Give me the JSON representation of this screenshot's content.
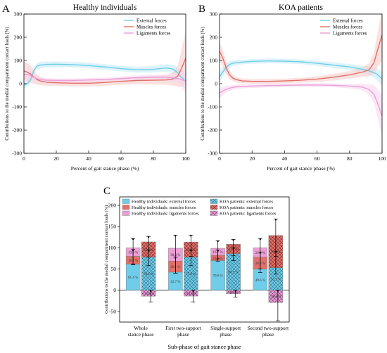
{
  "colors": {
    "external": "#6fcdea",
    "muscles": "#e0706a",
    "ligaments": "#ea9fd6",
    "external_band": "#bfe9f6",
    "muscles_band": "#f5c9c6",
    "ligaments_band": "#f8d4ee"
  },
  "chart_data": [
    {
      "type": "line",
      "panel_letter": "A",
      "title": "Healthy individuals",
      "xlabel": "Percent of gait stance phase (%)",
      "ylabel": "Contributions to the medial compartment contact loads (%)",
      "xlim": [
        0,
        100
      ],
      "ylim": [
        -300,
        300
      ],
      "xticks": [
        "0",
        "20",
        "40",
        "60",
        "80",
        "100"
      ],
      "yticks": [
        "-300",
        "-200",
        "-100",
        "0",
        "100",
        "200",
        "300"
      ],
      "legend": [
        "External forces",
        "Muscles forces",
        "Ligaments forces"
      ],
      "legend_position": "top-right",
      "series": [
        {
          "name": "External forces",
          "x": [
            0,
            2,
            4,
            6,
            8,
            10,
            14,
            20,
            30,
            40,
            50,
            60,
            70,
            80,
            88,
            92,
            95,
            97,
            100
          ],
          "y": [
            -5,
            0,
            15,
            55,
            75,
            80,
            83,
            84,
            82,
            78,
            72,
            65,
            60,
            62,
            68,
            63,
            48,
            30,
            10
          ],
          "band": [
            15,
            15,
            15,
            14,
            14,
            14,
            13,
            12,
            12,
            12,
            12,
            12,
            13,
            14,
            16,
            18,
            22,
            28,
            35
          ]
        },
        {
          "name": "Muscles forces",
          "x": [
            0,
            2,
            4,
            6,
            8,
            10,
            14,
            20,
            30,
            40,
            50,
            60,
            70,
            80,
            88,
            92,
            95,
            97,
            100
          ],
          "y": [
            55,
            50,
            42,
            30,
            18,
            12,
            6,
            4,
            2,
            2,
            5,
            10,
            14,
            15,
            16,
            20,
            32,
            60,
            110
          ],
          "band": [
            40,
            40,
            38,
            30,
            22,
            18,
            15,
            14,
            14,
            14,
            14,
            15,
            16,
            18,
            20,
            28,
            45,
            75,
            115
          ]
        },
        {
          "name": "Ligaments forces",
          "x": [
            0,
            2,
            4,
            6,
            8,
            10,
            14,
            20,
            30,
            40,
            50,
            60,
            70,
            80,
            88,
            92,
            95,
            97,
            100
          ],
          "y": [
            40,
            40,
            35,
            28,
            22,
            18,
            15,
            14,
            14,
            16,
            18,
            22,
            26,
            28,
            28,
            25,
            22,
            18,
            12
          ],
          "band": [
            20,
            20,
            18,
            15,
            12,
            10,
            9,
            8,
            8,
            8,
            8,
            9,
            10,
            11,
            12,
            14,
            18,
            28,
            55
          ]
        }
      ]
    },
    {
      "type": "line",
      "panel_letter": "B",
      "title": "KOA patients",
      "xlabel": "Percent of gait stance phase (%)",
      "ylabel": "Contributions to the medial compartment contact loads (%)",
      "xlim": [
        0,
        100
      ],
      "ylim": [
        -300,
        300
      ],
      "xticks": [
        "0",
        "20",
        "40",
        "60",
        "80",
        "100"
      ],
      "yticks": [
        "-300",
        "-200",
        "-100",
        "0",
        "100",
        "200",
        "300"
      ],
      "legend": [
        "External forces",
        "Muscles forces",
        "Ligaments forces"
      ],
      "legend_position": "top-right",
      "series": [
        {
          "name": "External forces",
          "x": [
            0,
            2,
            4,
            6,
            8,
            10,
            14,
            20,
            30,
            40,
            50,
            60,
            70,
            80,
            88,
            92,
            95,
            97,
            100
          ],
          "y": [
            30,
            50,
            70,
            82,
            88,
            90,
            93,
            96,
            98,
            97,
            94,
            88,
            80,
            72,
            62,
            55,
            48,
            40,
            20
          ],
          "band": [
            20,
            20,
            18,
            15,
            12,
            11,
            10,
            10,
            10,
            10,
            10,
            11,
            12,
            13,
            15,
            18,
            22,
            26,
            30
          ]
        },
        {
          "name": "Muscles forces",
          "x": [
            0,
            2,
            4,
            6,
            8,
            10,
            14,
            20,
            30,
            40,
            50,
            60,
            70,
            80,
            88,
            92,
            95,
            97,
            100
          ],
          "y": [
            140,
            110,
            70,
            40,
            25,
            18,
            12,
            10,
            10,
            12,
            15,
            20,
            28,
            38,
            50,
            60,
            90,
            140,
            210
          ],
          "band": [
            40,
            35,
            28,
            20,
            14,
            12,
            10,
            10,
            10,
            10,
            10,
            12,
            14,
            16,
            20,
            28,
            45,
            70,
            110
          ]
        },
        {
          "name": "Ligaments forces",
          "x": [
            0,
            2,
            4,
            6,
            8,
            10,
            14,
            20,
            30,
            40,
            50,
            60,
            70,
            80,
            88,
            92,
            95,
            97,
            100
          ],
          "y": [
            -40,
            -32,
            -25,
            -20,
            -16,
            -14,
            -12,
            -10,
            -8,
            -7,
            -6,
            -6,
            -7,
            -10,
            -15,
            -25,
            -45,
            -80,
            -140
          ],
          "band": [
            20,
            18,
            14,
            12,
            10,
            9,
            8,
            8,
            8,
            8,
            8,
            8,
            8,
            10,
            14,
            22,
            38,
            60,
            90
          ]
        }
      ]
    },
    {
      "type": "bar",
      "panel_letter": "C",
      "ylabel": "Contributions to the medial compartment contact loads (%)",
      "xlabel": "Sub-phase of gait stance phase",
      "ylim": [
        -75,
        220
      ],
      "yticks": [
        "-50",
        "0",
        "50",
        "100",
        "150",
        "200"
      ],
      "categories": [
        [
          "Whole",
          "stance phase"
        ],
        [
          "First two-support",
          "phase"
        ],
        [
          "Single-support",
          "phase"
        ],
        [
          "Second two-support",
          "phase"
        ]
      ],
      "legend": [
        "Healthy individuals: external forces",
        "KOA patients: external forces",
        "Healthy individuals: muscles forces",
        "KOA patients: muscles forces",
        "Healthy individuals: ligaments forces",
        "KOA patients: ligaments forces"
      ],
      "legend_position": "top-left",
      "healthy": {
        "external": [
          61.4,
          42.7,
          70.0,
          49.6
        ],
        "muscles": [
          18.7,
          26.1,
          12.3,
          28.6
        ],
        "ligaments": [
          19.8,
          30.3,
          16.7,
          21.8
        ],
        "error_total": [
          [
            60,
            122
          ],
          [
            40,
            130
          ],
          [
            68,
            117
          ],
          [
            50,
            122
          ]
        ],
        "error_mid": [
          [
            62,
            96
          ],
          [
            40,
            78
          ],
          [
            74,
            95
          ],
          [
            42,
            90
          ]
        ]
      },
      "koa": {
        "external": [
          78.2,
          77.9,
          86.3,
          53.1
        ],
        "muscles": [
          35.8,
          35.8,
          22.1,
          75.9
        ],
        "ligaments": [
          -14.0,
          -13.8,
          -8.4,
          -29.0
        ],
        "labels": [
          "78.2 %",
          "77.9 %",
          "86.3 %",
          "53.1 %"
        ],
        "error_total": [
          [
            78,
            127
          ],
          [
            80,
            130
          ],
          [
            82,
            120
          ],
          [
            80,
            168
          ]
        ],
        "error_mid": [
          [
            58,
            95
          ],
          [
            58,
            95
          ],
          [
            70,
            100
          ],
          [
            38,
            92
          ]
        ],
        "error_lig": [
          [
            -28,
            0
          ],
          [
            -28,
            0
          ],
          [
            -16,
            0
          ],
          [
            -72,
            0
          ]
        ]
      },
      "healthy_labels": {
        "external": [
          "61.4 %",
          "42.7 %",
          "70.0 %",
          "49.6 %"
        ],
        "muscles": [
          "18.7 %",
          "26.1 %",
          "12.3 %",
          "28.6 %"
        ],
        "ligaments": [
          "19.8 %",
          "30.3 %",
          "16.7 %",
          "21.8 %"
        ]
      },
      "koa_labels": {
        "external": [
          "78.2 %",
          "77.9 %",
          "86.3 %",
          "53.1 %"
        ],
        "muscles": [
          "35.8 %",
          "35.8 %",
          "22.1 %",
          "75.9 %"
        ],
        "ligaments": [
          "-14.0 %",
          "-13.8 %",
          "-8.4 %",
          "-29.0 %"
        ]
      }
    }
  ]
}
